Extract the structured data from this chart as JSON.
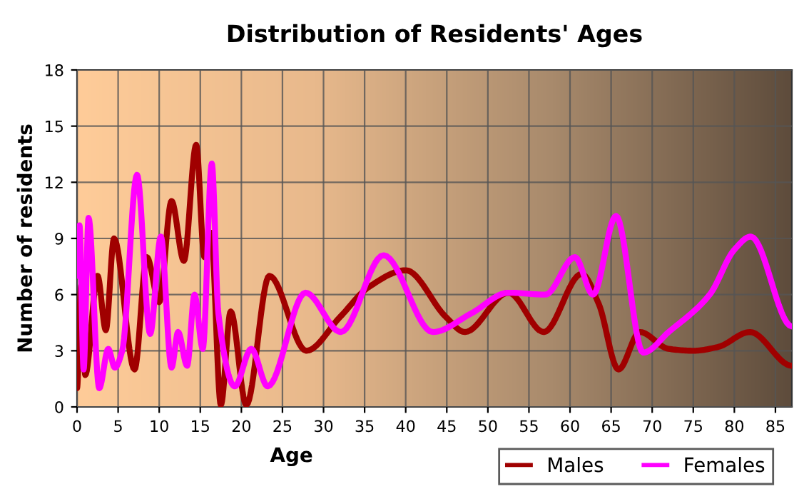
{
  "chart_data": {
    "type": "line",
    "title": "Distribution of Residents' Ages",
    "xlabel": "Age",
    "ylabel": "Number of residents",
    "xlim": [
      0,
      87
    ],
    "xticks": [
      0,
      5,
      10,
      15,
      20,
      25,
      30,
      35,
      40,
      45,
      50,
      55,
      60,
      65,
      70,
      75,
      80,
      85
    ],
    "ylim": [
      0,
      18
    ],
    "yticks": [
      0,
      3,
      6,
      9,
      12,
      15,
      18
    ],
    "grid": true,
    "legend": "bottom right",
    "marker": "none",
    "line_style": "solid",
    "series": [
      {
        "name": "Males",
        "color": "#a00000",
        "x": [
          0,
          0.5,
          1,
          2.5,
          3.5,
          4.5,
          7,
          8.5,
          10,
          11.5,
          13,
          14.5,
          15.5,
          16.3,
          17.5,
          18.7,
          20.6,
          23.4,
          27.9,
          32,
          35.5,
          40,
          44.9,
          47.2,
          52.5,
          56.8,
          61.4,
          63.5,
          65.9,
          68.5,
          72,
          75,
          78,
          81.9,
          87
        ],
        "values": [
          1,
          6.5,
          1.7,
          7,
          4.1,
          9,
          2,
          8,
          5.6,
          11,
          7.8,
          14,
          8,
          9.3,
          0.1,
          5.1,
          0.1,
          7,
          3,
          4.8,
          6.4,
          7.3,
          4.8,
          4,
          6.1,
          4,
          7.1,
          5.5,
          2,
          4,
          3.1,
          3,
          3.2,
          4,
          2.2
        ]
      },
      {
        "name": "Females",
        "color": "#ff00ff",
        "x": [
          0,
          0.3,
          0.8,
          1.4,
          2.7,
          3.8,
          4.6,
          5.5,
          7.3,
          8.9,
          10.2,
          11.5,
          12.3,
          13.4,
          14.3,
          15.3,
          16.4,
          17.2,
          19.2,
          21.2,
          23.2,
          27.8,
          32.1,
          37.3,
          43.3,
          48,
          52.5,
          57,
          60.6,
          62.8,
          65.6,
          68.9,
          72,
          77,
          80,
          82,
          87
        ],
        "values": [
          7,
          9.7,
          2,
          10.1,
          1,
          3.1,
          2.1,
          3,
          12.4,
          3.9,
          9.1,
          2.1,
          4,
          2.2,
          6,
          3.1,
          13,
          5,
          1.1,
          3.1,
          1.1,
          6.1,
          4,
          8.1,
          4,
          5,
          6.1,
          6,
          8,
          6,
          10.2,
          2.9,
          4,
          6,
          8.4,
          9.1,
          4.3
        ]
      }
    ]
  }
}
